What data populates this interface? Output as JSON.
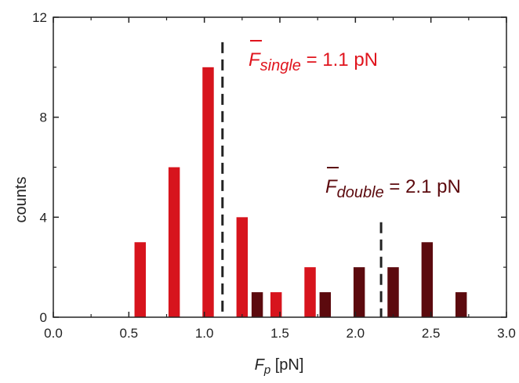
{
  "chart_data": {
    "type": "bar",
    "xlabel": {
      "main": "F",
      "sub": "p",
      "unit": " [pN]"
    },
    "ylabel": "counts",
    "xlim": [
      0.0,
      3.0
    ],
    "ylim": [
      0,
      12
    ],
    "x_ticks": [
      "0.0",
      "0.5",
      "1.0",
      "1.5",
      "2.0",
      "2.5",
      "3.0"
    ],
    "y_ticks": [
      "0",
      "4",
      "8",
      "12"
    ],
    "bin_width": 0.075,
    "series": [
      {
        "color": "#d7141d",
        "x": [
          0.575,
          0.8,
          1.025,
          1.25,
          1.475,
          1.7
        ],
        "values": [
          3,
          6,
          10,
          4,
          1,
          2
        ]
      },
      {
        "color": "#5c0a0e",
        "x": [
          1.35,
          1.8,
          2.025,
          2.25,
          2.475,
          2.7
        ],
        "values": [
          1,
          1,
          2,
          2,
          3,
          1
        ]
      }
    ],
    "reference_lines": [
      {
        "x": 1.12,
        "y_top": 11,
        "color": "#222222"
      },
      {
        "x": 2.17,
        "y_top": 3.8,
        "color": "#222222"
      }
    ],
    "annotations": [
      {
        "main": "F",
        "sub": "single",
        "rest": " = 1.1 pN",
        "color": "#e0141d"
      },
      {
        "main": "F",
        "sub": "double",
        "rest": " = 2.1 pN",
        "color": "#5c0a0e"
      }
    ]
  }
}
